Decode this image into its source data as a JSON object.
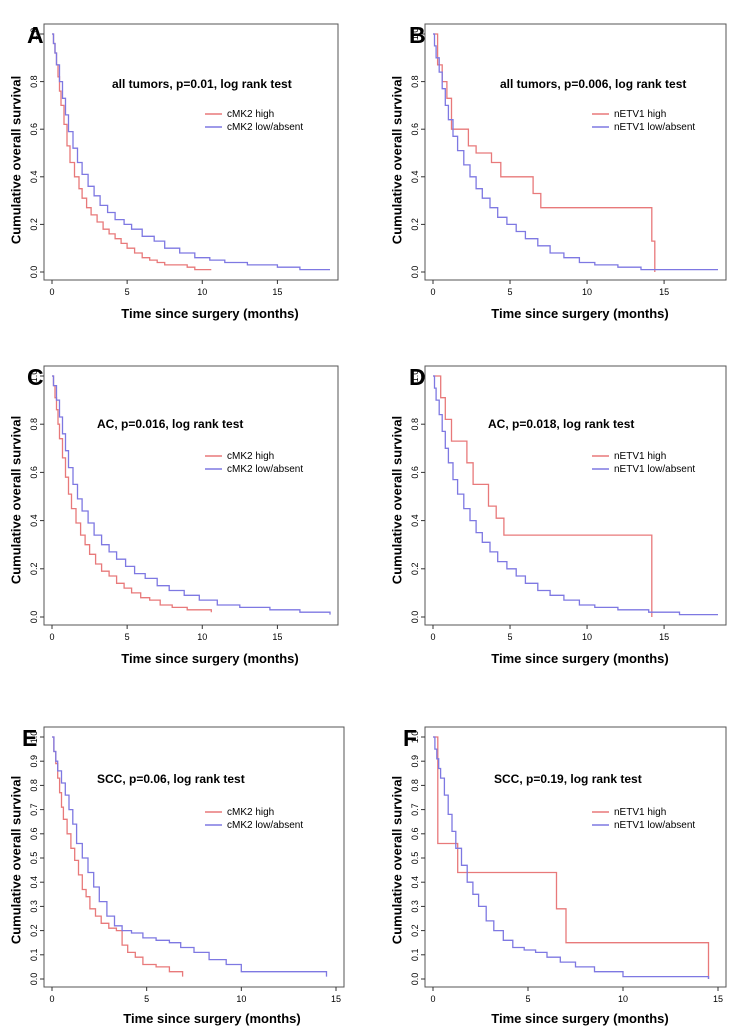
{
  "chart_data": [
    {
      "panel": "A",
      "type": "line",
      "step": true,
      "annotation": "all tumors, p=0.01, log rank test",
      "xlabel": "Time since surgery (months)",
      "ylabel": "Cumulative overall survival",
      "xlim": [
        0,
        18.5
      ],
      "ylim": [
        0,
        1.0
      ],
      "x_ticks": [
        "0",
        "5",
        "10",
        "15"
      ],
      "y_ticks": [
        "0.0",
        "0.2",
        "0.4",
        "0.6",
        "0.8",
        "1.0"
      ],
      "legend_position": "upper-right",
      "series": [
        {
          "name": "cMK2 high",
          "color": "#e8797a",
          "x": [
            0,
            0.1,
            0.2,
            0.3,
            0.4,
            0.5,
            0.6,
            0.8,
            1.0,
            1.2,
            1.5,
            1.8,
            2.0,
            2.3,
            2.6,
            3.0,
            3.4,
            3.8,
            4.2,
            4.6,
            5.0,
            5.5,
            6.0,
            6.5,
            7.0,
            7.5,
            8.0,
            9.0,
            9.5,
            10.6
          ],
          "y": [
            1.0,
            0.96,
            0.92,
            0.87,
            0.82,
            0.76,
            0.7,
            0.62,
            0.53,
            0.46,
            0.4,
            0.35,
            0.31,
            0.27,
            0.24,
            0.21,
            0.18,
            0.16,
            0.14,
            0.12,
            0.1,
            0.08,
            0.06,
            0.05,
            0.04,
            0.03,
            0.03,
            0.02,
            0.01,
            0.01
          ]
        },
        {
          "name": "cMK2 low/absent",
          "color": "#7e78e2",
          "x": [
            0,
            0.1,
            0.2,
            0.3,
            0.5,
            0.7,
            0.9,
            1.1,
            1.4,
            1.7,
            2.0,
            2.4,
            2.8,
            3.2,
            3.7,
            4.2,
            4.8,
            5.3,
            6.0,
            6.8,
            7.5,
            8.5,
            9.5,
            10.5,
            11.5,
            13.0,
            15.0,
            16.5,
            18.5
          ],
          "y": [
            1.0,
            0.96,
            0.92,
            0.87,
            0.8,
            0.73,
            0.66,
            0.59,
            0.52,
            0.46,
            0.41,
            0.36,
            0.32,
            0.28,
            0.25,
            0.22,
            0.2,
            0.18,
            0.15,
            0.13,
            0.1,
            0.08,
            0.06,
            0.05,
            0.04,
            0.03,
            0.02,
            0.01,
            0.01
          ]
        }
      ]
    },
    {
      "panel": "B",
      "type": "line",
      "step": true,
      "annotation": "all tumors, p=0.006, log rank test",
      "xlabel": "Time since surgery (months)",
      "ylabel": "Cumulative overall survival",
      "xlim": [
        0,
        18.5
      ],
      "ylim": [
        0,
        1.0
      ],
      "x_ticks": [
        "0",
        "5",
        "10",
        "15"
      ],
      "y_ticks": [
        "0.0",
        "0.2",
        "0.4",
        "0.6",
        "0.8",
        "1.0"
      ],
      "legend_position": "upper-right",
      "series": [
        {
          "name": "nETV1 high",
          "color": "#e8797a",
          "x": [
            0,
            0.3,
            0.6,
            0.9,
            1.2,
            2.3,
            2.8,
            3.8,
            4.4,
            6.5,
            7.0,
            14.2,
            14.4
          ],
          "y": [
            1.0,
            0.87,
            0.8,
            0.73,
            0.6,
            0.53,
            0.5,
            0.46,
            0.4,
            0.33,
            0.27,
            0.13,
            0.0
          ]
        },
        {
          "name": "nETV1 low/absent",
          "color": "#7e78e2",
          "x": [
            0,
            0.1,
            0.2,
            0.4,
            0.6,
            0.8,
            1.0,
            1.3,
            1.6,
            2.0,
            2.4,
            2.8,
            3.2,
            3.7,
            4.2,
            4.8,
            5.4,
            6.0,
            6.8,
            7.6,
            8.5,
            9.5,
            10.5,
            12.0,
            13.5,
            15.0,
            18.5
          ],
          "y": [
            1.0,
            0.95,
            0.9,
            0.84,
            0.77,
            0.7,
            0.64,
            0.57,
            0.51,
            0.45,
            0.4,
            0.35,
            0.31,
            0.27,
            0.23,
            0.2,
            0.17,
            0.14,
            0.11,
            0.08,
            0.06,
            0.04,
            0.03,
            0.02,
            0.01,
            0.01,
            0.01
          ]
        }
      ]
    },
    {
      "panel": "C",
      "type": "line",
      "step": true,
      "annotation": "AC, p=0.016, log rank test",
      "xlabel": "Time since surgery (months)",
      "ylabel": "Cumulative overall survival",
      "xlim": [
        0,
        18.5
      ],
      "ylim": [
        0,
        1.0
      ],
      "x_ticks": [
        "0",
        "5",
        "10",
        "15"
      ],
      "y_ticks": [
        "0.0",
        "0.2",
        "0.4",
        "0.6",
        "0.8",
        "1.0"
      ],
      "legend_position": "upper-right",
      "series": [
        {
          "name": "cMK2 high",
          "color": "#e8797a",
          "x": [
            0,
            0.1,
            0.2,
            0.3,
            0.4,
            0.5,
            0.7,
            0.9,
            1.1,
            1.3,
            1.6,
            1.9,
            2.2,
            2.5,
            2.9,
            3.3,
            3.8,
            4.3,
            4.8,
            5.3,
            5.9,
            6.5,
            7.2,
            8.0,
            9.0,
            10.6
          ],
          "y": [
            1.0,
            0.96,
            0.91,
            0.86,
            0.8,
            0.74,
            0.66,
            0.58,
            0.51,
            0.45,
            0.39,
            0.34,
            0.3,
            0.26,
            0.22,
            0.19,
            0.17,
            0.14,
            0.12,
            0.1,
            0.08,
            0.07,
            0.05,
            0.04,
            0.03,
            0.02
          ]
        },
        {
          "name": "cMK2 low/absent",
          "color": "#7e78e2",
          "x": [
            0,
            0.1,
            0.3,
            0.5,
            0.7,
            0.9,
            1.1,
            1.4,
            1.7,
            2.0,
            2.4,
            2.8,
            3.3,
            3.8,
            4.3,
            4.9,
            5.5,
            6.2,
            7.0,
            7.8,
            8.8,
            9.8,
            11.0,
            12.5,
            14.5,
            16.5,
            18.5
          ],
          "y": [
            1.0,
            0.96,
            0.9,
            0.83,
            0.76,
            0.69,
            0.62,
            0.55,
            0.49,
            0.44,
            0.39,
            0.34,
            0.3,
            0.27,
            0.24,
            0.21,
            0.18,
            0.16,
            0.13,
            0.11,
            0.09,
            0.07,
            0.05,
            0.04,
            0.03,
            0.02,
            0.01
          ]
        }
      ]
    },
    {
      "panel": "D",
      "type": "line",
      "step": true,
      "annotation": "AC, p=0.018, log rank test",
      "xlabel": "Time since surgery (months)",
      "ylabel": "Cumulative overall survival",
      "xlim": [
        0,
        18.5
      ],
      "ylim": [
        0,
        1.0
      ],
      "x_ticks": [
        "0",
        "5",
        "10",
        "15"
      ],
      "y_ticks": [
        "0.0",
        "0.2",
        "0.4",
        "0.6",
        "0.8",
        "1.0"
      ],
      "legend_position": "upper-right",
      "series": [
        {
          "name": "nETV1 high",
          "color": "#e8797a",
          "x": [
            0,
            0.5,
            0.8,
            1.2,
            2.2,
            2.6,
            3.6,
            4.1,
            4.6,
            14.2
          ],
          "y": [
            1.0,
            0.91,
            0.82,
            0.73,
            0.64,
            0.55,
            0.46,
            0.41,
            0.34,
            0.0
          ]
        },
        {
          "name": "nETV1 low/absent",
          "color": "#7e78e2",
          "x": [
            0,
            0.1,
            0.2,
            0.4,
            0.6,
            0.8,
            1.0,
            1.3,
            1.6,
            2.0,
            2.4,
            2.8,
            3.2,
            3.7,
            4.2,
            4.8,
            5.4,
            6.0,
            6.8,
            7.6,
            8.5,
            9.5,
            10.5,
            12.0,
            14.0,
            16.0,
            18.5
          ],
          "y": [
            1.0,
            0.95,
            0.9,
            0.84,
            0.77,
            0.7,
            0.64,
            0.57,
            0.51,
            0.45,
            0.4,
            0.35,
            0.31,
            0.27,
            0.23,
            0.2,
            0.17,
            0.14,
            0.11,
            0.09,
            0.07,
            0.05,
            0.04,
            0.03,
            0.02,
            0.01,
            0.01
          ]
        }
      ]
    },
    {
      "panel": "E",
      "type": "line",
      "step": true,
      "annotation": "SCC, p=0.06, log rank test",
      "xlabel": "Time since surgery (months)",
      "ylabel": "Cumulative overall survival",
      "xlim": [
        0,
        15
      ],
      "ylim": [
        0,
        1.0
      ],
      "x_ticks": [
        "0",
        "5",
        "10",
        "15"
      ],
      "y_ticks": [
        "0.0",
        "0.1",
        "0.2",
        "0.3",
        "0.4",
        "0.5",
        "0.6",
        "0.7",
        "0.8",
        "0.9",
        "1.0"
      ],
      "legend_position": "upper-right",
      "series": [
        {
          "name": "cMK2 high",
          "color": "#e8797a",
          "x": [
            0,
            0.1,
            0.2,
            0.3,
            0.4,
            0.5,
            0.6,
            0.8,
            1.0,
            1.2,
            1.4,
            1.6,
            1.8,
            2.0,
            2.3,
            2.6,
            3.0,
            3.4,
            3.7,
            4.0,
            4.4,
            4.8,
            5.5,
            6.2,
            6.9
          ],
          "y": [
            1.0,
            0.94,
            0.89,
            0.83,
            0.77,
            0.71,
            0.66,
            0.6,
            0.54,
            0.49,
            0.43,
            0.37,
            0.34,
            0.29,
            0.26,
            0.23,
            0.21,
            0.2,
            0.14,
            0.11,
            0.09,
            0.06,
            0.05,
            0.03,
            0.01
          ]
        },
        {
          "name": "cMK2 low/absent",
          "color": "#7e78e2",
          "x": [
            0,
            0.1,
            0.2,
            0.3,
            0.5,
            0.7,
            0.9,
            1.1,
            1.3,
            1.6,
            1.9,
            2.2,
            2.5,
            2.9,
            3.3,
            3.7,
            4.2,
            4.8,
            5.5,
            6.2,
            6.8,
            7.5,
            8.3,
            9.2,
            10.0,
            12.0,
            14.5
          ],
          "y": [
            1.0,
            0.94,
            0.9,
            0.86,
            0.81,
            0.76,
            0.7,
            0.64,
            0.56,
            0.5,
            0.44,
            0.38,
            0.32,
            0.26,
            0.22,
            0.2,
            0.19,
            0.17,
            0.16,
            0.15,
            0.13,
            0.11,
            0.08,
            0.06,
            0.03,
            0.03,
            0.01
          ]
        }
      ]
    },
    {
      "panel": "F",
      "type": "line",
      "step": true,
      "annotation": "SCC, p=0.19, log rank test",
      "xlabel": "Time since surgery (months)",
      "ylabel": "Cumulative overall survival",
      "xlim": [
        0,
        15
      ],
      "ylim": [
        0,
        1.0
      ],
      "x_ticks": [
        "0",
        "5",
        "10",
        "15"
      ],
      "y_ticks": [
        "0.0",
        "0.1",
        "0.2",
        "0.3",
        "0.4",
        "0.5",
        "0.6",
        "0.7",
        "0.8",
        "0.9",
        "1.0"
      ],
      "legend_position": "upper-right",
      "series": [
        {
          "name": "nETV1 high",
          "color": "#e8797a",
          "x": [
            0,
            0.25,
            1.3,
            6.5,
            7.0,
            14.5
          ],
          "y": [
            1.0,
            0.56,
            0.44,
            0.29,
            0.15,
            0.0
          ]
        },
        {
          "name": "nETV1 low/absent",
          "color": "#7e78e2",
          "x": [
            0,
            0.1,
            0.2,
            0.3,
            0.4,
            0.6,
            0.8,
            1.0,
            1.2,
            1.5,
            1.8,
            2.1,
            2.4,
            2.8,
            3.2,
            3.7,
            4.2,
            4.8,
            5.4,
            6.0,
            6.7,
            7.5,
            8.5,
            10.0,
            12.0,
            14.5
          ],
          "y": [
            1.0,
            0.95,
            0.91,
            0.87,
            0.83,
            0.76,
            0.68,
            0.61,
            0.54,
            0.47,
            0.4,
            0.35,
            0.3,
            0.24,
            0.2,
            0.16,
            0.13,
            0.12,
            0.11,
            0.09,
            0.07,
            0.05,
            0.03,
            0.01,
            0.01,
            0.0
          ]
        }
      ]
    }
  ]
}
